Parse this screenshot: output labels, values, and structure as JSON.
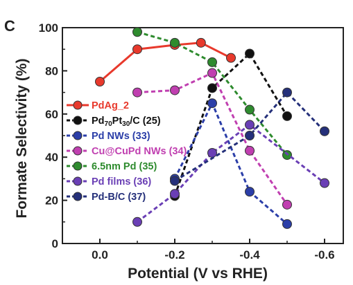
{
  "chart_data": {
    "type": "line",
    "panel_label": "C",
    "title": "",
    "xlabel": "Potential (V vs RHE)",
    "ylabel": "Formate Selectivity (%)",
    "xlim": [
      0.1,
      -0.65
    ],
    "ylim": [
      0,
      100
    ],
    "x_ticks": [
      0.0,
      -0.2,
      -0.4,
      -0.6
    ],
    "x_tick_labels": [
      "0.0",
      "-0.2",
      "-0.4",
      "-0.6"
    ],
    "y_ticks": [
      0,
      20,
      40,
      60,
      80,
      100
    ],
    "y_tick_labels": [
      "0",
      "20",
      "40",
      "60",
      "80",
      "100"
    ],
    "legend_position": "left",
    "series": [
      {
        "name": "PdAg_2",
        "name_parts": [
          [
            "PdAg_2",
            ""
          ]
        ],
        "color": "#e8392c",
        "line_style": "solid",
        "x": [
          0.0,
          -0.1,
          -0.2,
          -0.27,
          -0.35
        ],
        "y": [
          75,
          90,
          92,
          93,
          86
        ]
      },
      {
        "name": "Pd70Pt30/C (25)",
        "name_parts": [
          [
            "Pd",
            ""
          ],
          [
            "70",
            "sub"
          ],
          [
            "Pt",
            ""
          ],
          [
            "30",
            "sub"
          ],
          [
            "/C (25)",
            ""
          ]
        ],
        "color": "#111111",
        "line_style": "dashed",
        "x": [
          -0.2,
          -0.3,
          -0.4,
          -0.5
        ],
        "y": [
          22,
          72,
          88,
          59
        ]
      },
      {
        "name": "Pd NWs (33)",
        "name_parts": [
          [
            "Pd NWs (33)",
            ""
          ]
        ],
        "color": "#2b3ea8",
        "line_style": "dashed",
        "x": [
          -0.2,
          -0.3,
          -0.4,
          -0.5
        ],
        "y": [
          30,
          65,
          24,
          9
        ]
      },
      {
        "name": "Cu@CuPd NWs (34)",
        "name_parts": [
          [
            "Cu@CuPd NWs (34)",
            ""
          ]
        ],
        "color": "#c03fb0",
        "line_style": "dashed",
        "x": [
          -0.1,
          -0.2,
          -0.3,
          -0.4,
          -0.5
        ],
        "y": [
          70,
          71,
          79,
          43,
          18
        ]
      },
      {
        "name": "6.5nm Pd (35)",
        "name_parts": [
          [
            "6.5nm Pd (35)",
            ""
          ]
        ],
        "color": "#2e8b2e",
        "line_style": "dashed",
        "x": [
          -0.1,
          -0.2,
          -0.3,
          -0.4,
          -0.5
        ],
        "y": [
          98,
          93,
          84,
          62,
          41
        ]
      },
      {
        "name": "Pd films (36)",
        "name_parts": [
          [
            "Pd films (36)",
            ""
          ]
        ],
        "color": "#6a3fb5",
        "line_style": "dashed",
        "x": [
          -0.1,
          -0.2,
          -0.3,
          -0.4,
          -0.6
        ],
        "y": [
          10,
          23,
          42,
          55,
          28
        ]
      },
      {
        "name": "Pd-B/C (37)",
        "name_parts": [
          [
            "Pd-B/C (37)",
            ""
          ]
        ],
        "color": "#25307a",
        "line_style": "dashed",
        "x": [
          -0.2,
          -0.4,
          -0.5,
          -0.6
        ],
        "y": [
          29,
          50,
          70,
          52
        ]
      }
    ]
  }
}
